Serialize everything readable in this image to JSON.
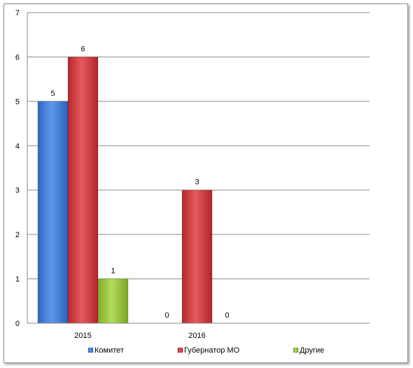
{
  "chart_data": {
    "type": "bar",
    "title": "",
    "xlabel": "",
    "ylabel": "",
    "categories": [
      "2015",
      "2016"
    ],
    "ylim": [
      0,
      7
    ],
    "yticks": [
      0,
      1,
      2,
      3,
      4,
      5,
      6,
      7
    ],
    "grid": true,
    "legend_position": "bottom",
    "series": [
      {
        "name": "Комитет",
        "values": [
          5,
          0
        ],
        "color": "#3b78d4"
      },
      {
        "name": "Губернатор МО",
        "values": [
          6,
          3
        ],
        "color": "#cf3236"
      },
      {
        "name": "Другие",
        "values": [
          1,
          0
        ],
        "color": "#95c23d"
      }
    ]
  }
}
